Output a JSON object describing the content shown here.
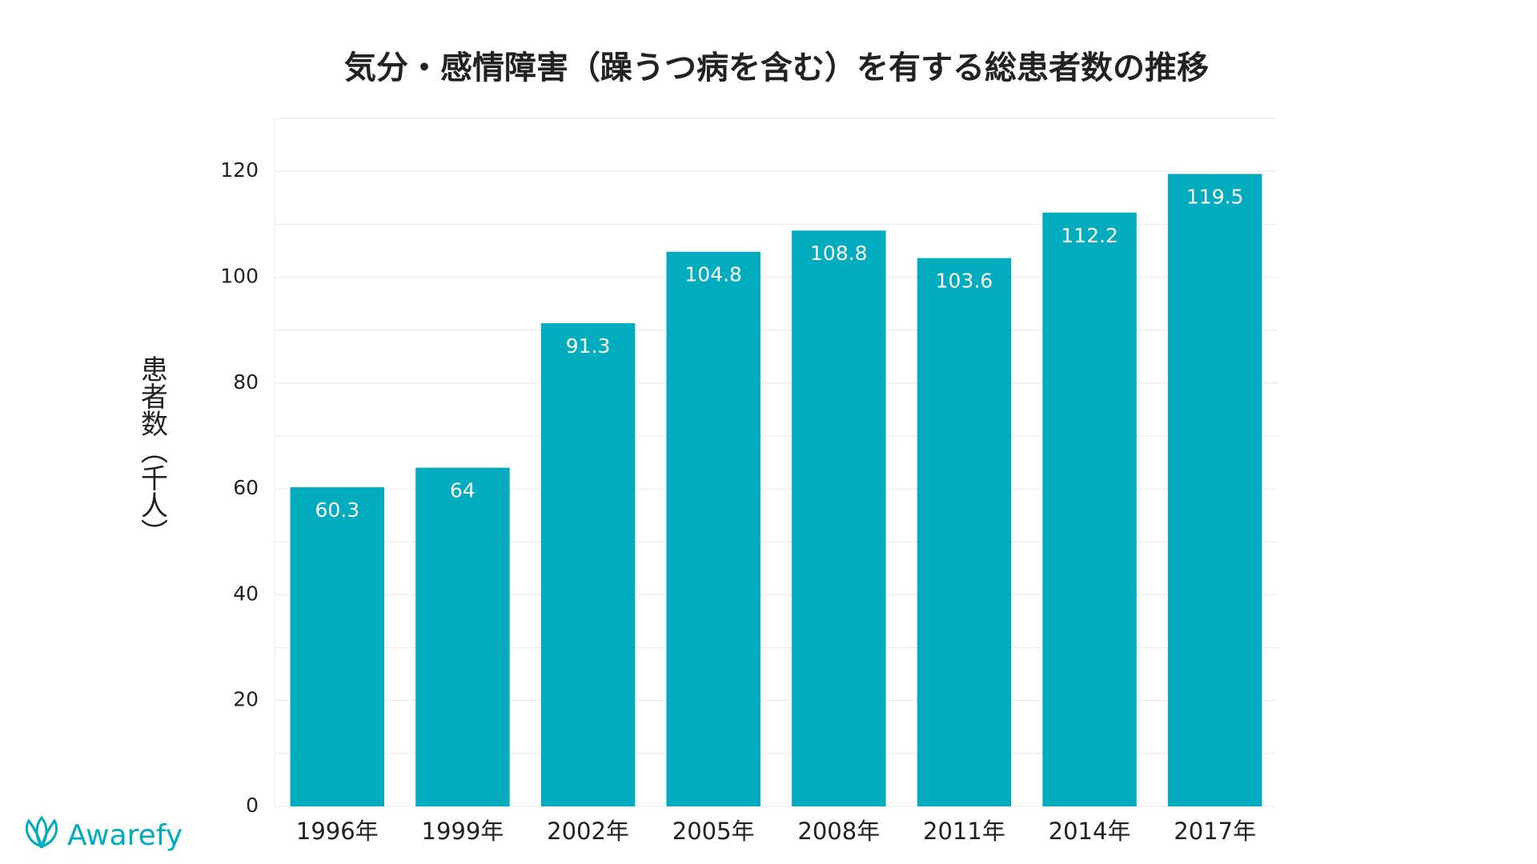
{
  "chart_data": {
    "type": "bar",
    "title": "気分・感情障害（躁うつ病を含む）を有する総患者数の推移",
    "y_label": "患者数（千人）",
    "categories": [
      "1996年",
      "1999年",
      "2002年",
      "2005年",
      "2008年",
      "2011年",
      "2014年",
      "2017年"
    ],
    "values": [
      60.3,
      64,
      91.3,
      104.8,
      108.8,
      103.6,
      112.2,
      119.5
    ],
    "color": "#00acbe",
    "ylim": [
      0,
      130
    ],
    "yticks": [
      0,
      20,
      40,
      60,
      80,
      100,
      120
    ],
    "minor_gridlines": [
      10,
      30,
      50,
      70,
      90,
      110,
      130
    ],
    "grid": true,
    "logo": "Awarefy"
  }
}
